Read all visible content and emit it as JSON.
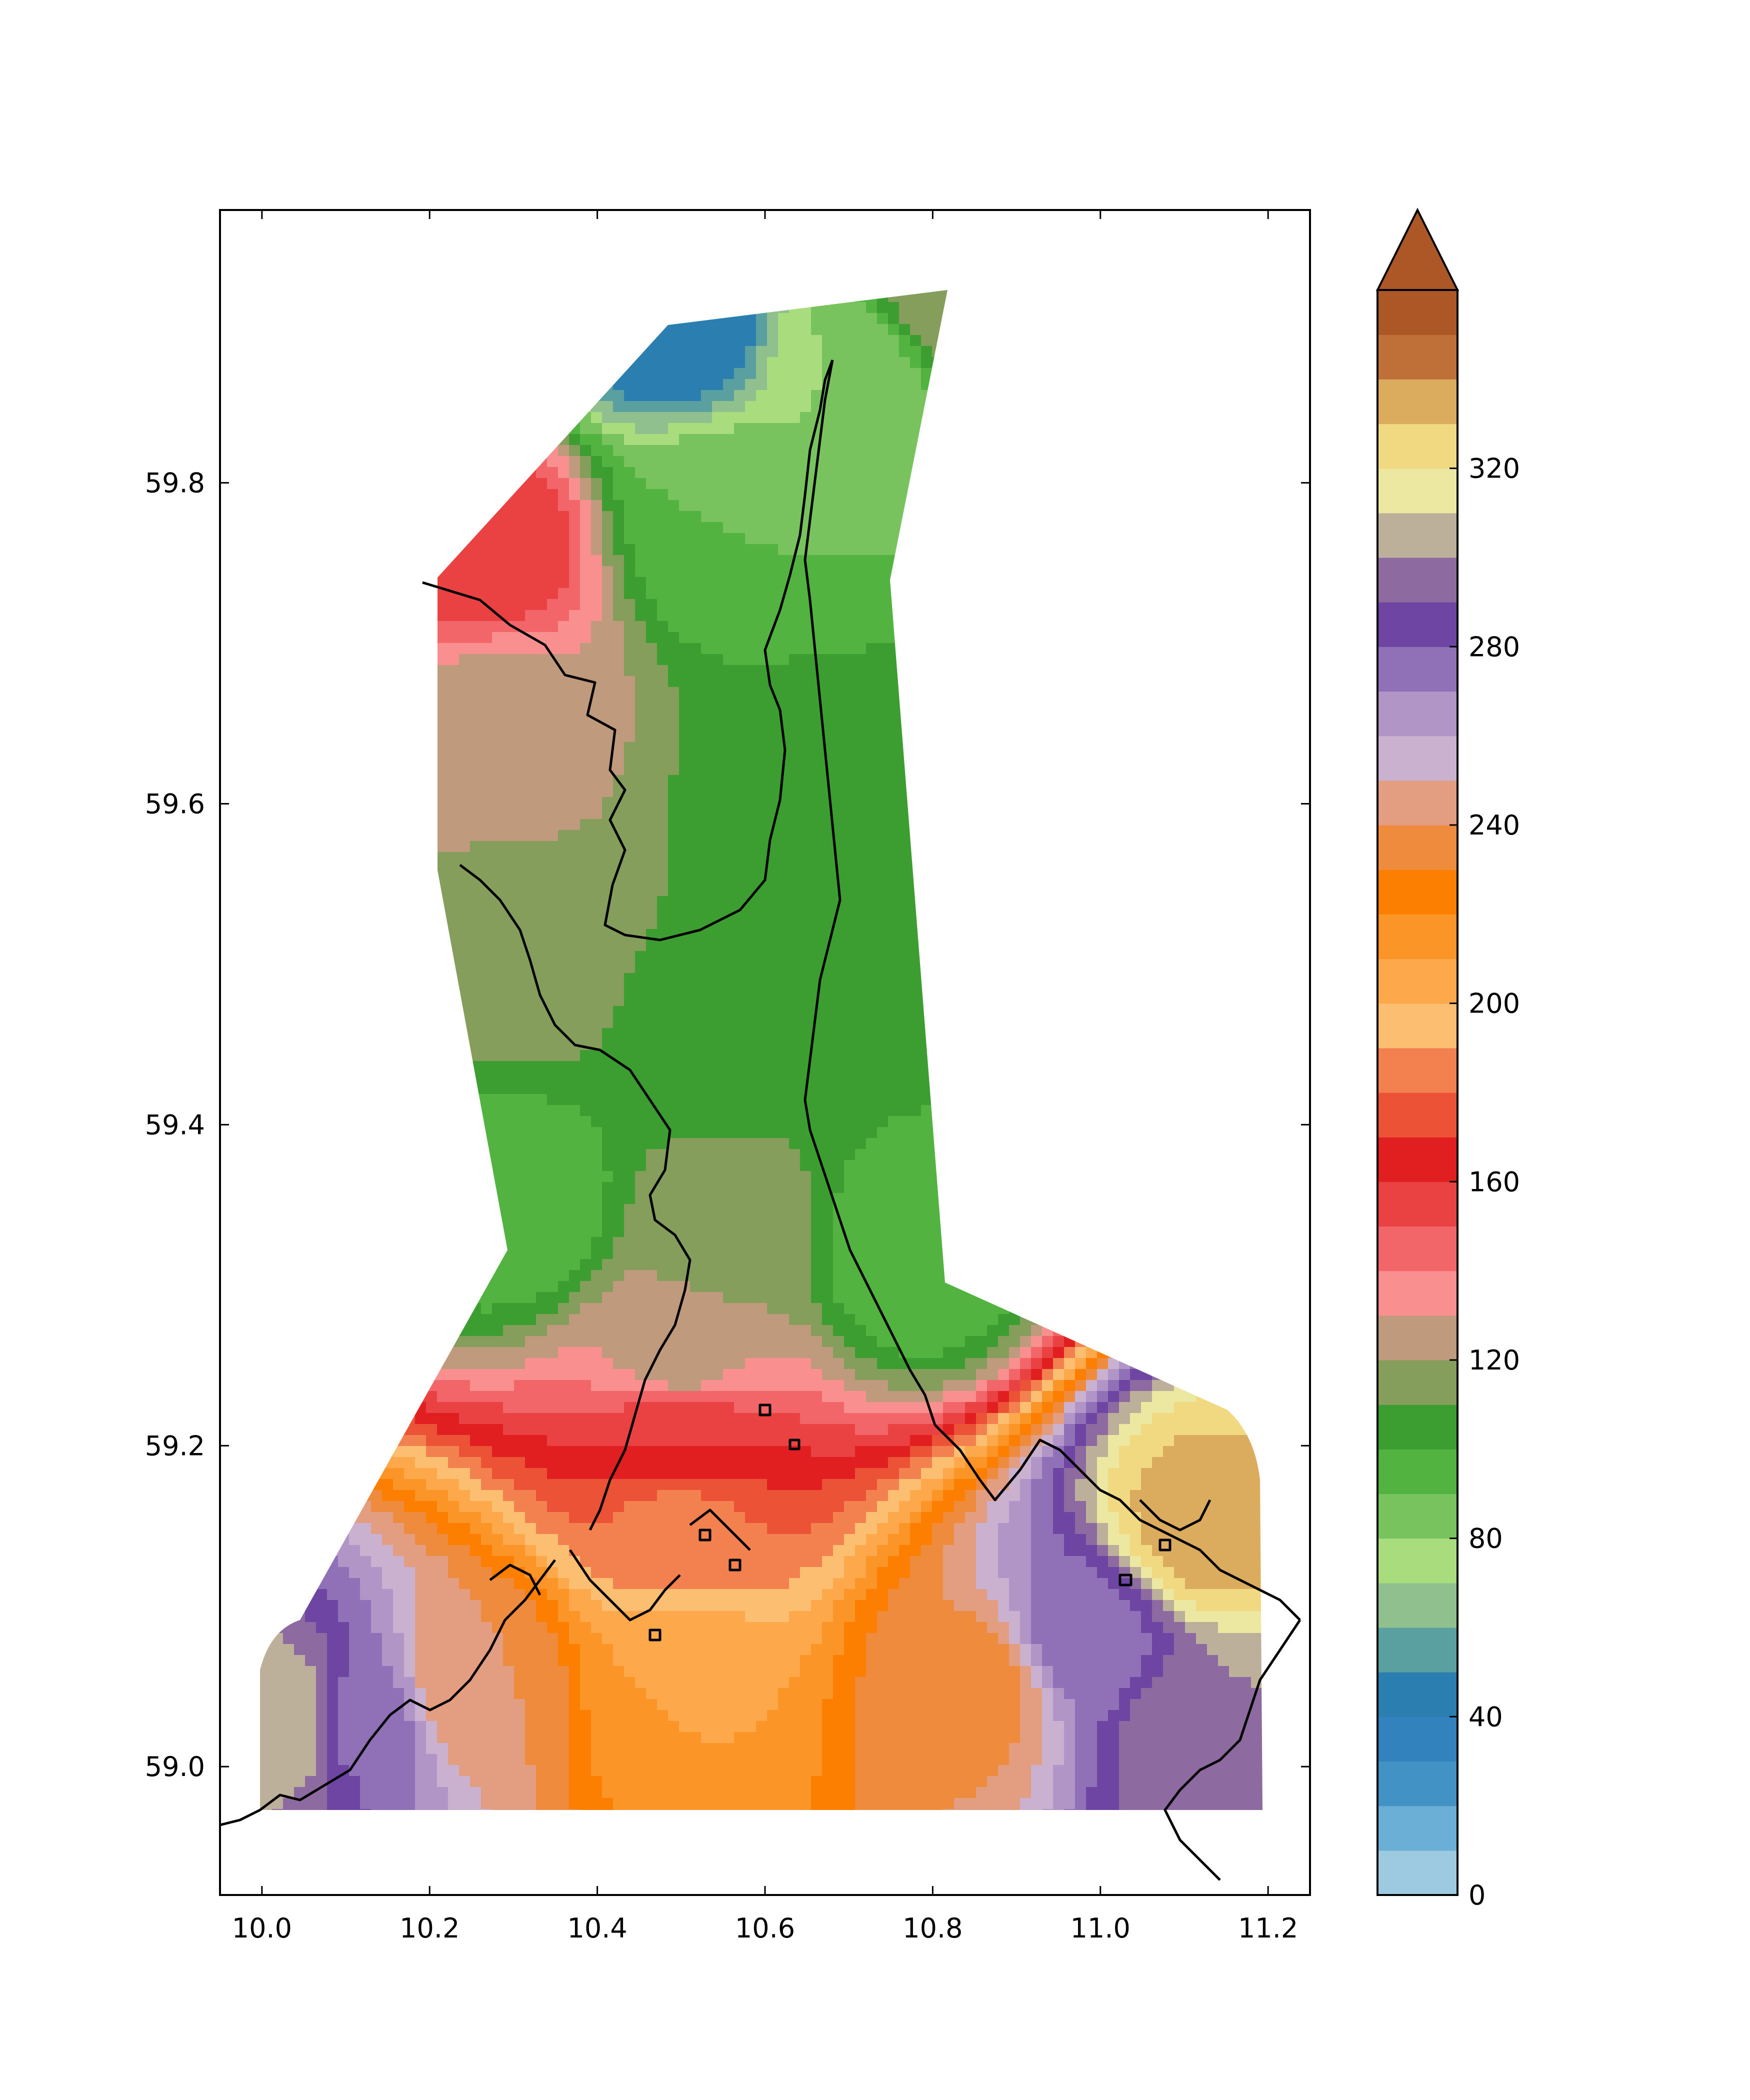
{
  "chart_data": {
    "type": "heatmap",
    "title": "",
    "xlabel": "",
    "ylabel": "",
    "xlim": [
      9.95,
      11.25
    ],
    "ylim": [
      58.92,
      59.97
    ],
    "x_ticks": [
      "10.0",
      "10.2",
      "10.4",
      "10.6",
      "10.8",
      "11.0",
      "11.2"
    ],
    "y_ticks": [
      "59.0",
      "59.2",
      "59.4",
      "59.6",
      "59.8"
    ],
    "grid": false,
    "colorbar": {
      "ticks": [
        "0",
        "40",
        "80",
        "120",
        "160",
        "200",
        "240",
        "280",
        "320"
      ],
      "range": [
        0,
        340
      ],
      "step": 10,
      "extend": "max",
      "colors": [
        "#9ecae1",
        "#6baed6",
        "#4292c6",
        "#3182bd",
        "#2b7fb0",
        "#5aa0a0",
        "#8fc08e",
        "#a8dc7c",
        "#78c35e",
        "#52b341",
        "#3c9e31",
        "#859e5b",
        "#c09a7c",
        "#fa8f8f",
        "#f2666a",
        "#ea4143",
        "#e11f20",
        "#ec5336",
        "#f2814f",
        "#fcbf72",
        "#fda84a",
        "#fb9528",
        "#fc7f02",
        "#ee8b3c",
        "#e39d81",
        "#cab1d0",
        "#b095c6",
        "#9070b6",
        "#6e45a2",
        "#8d6ba0",
        "#bdb09a",
        "#ede8a1",
        "#f0d980",
        "#dbab5e",
        "#bf7038",
        "#ad5727"
      ]
    },
    "regions": [
      {
        "lon": 10.03,
        "lat": 59.03,
        "value": 310
      },
      {
        "lon": 10.12,
        "lat": 59.03,
        "value": 275
      },
      {
        "lon": 10.25,
        "lat": 59.05,
        "value": 240
      },
      {
        "lon": 10.5,
        "lat": 59.05,
        "value": 210
      },
      {
        "lon": 10.85,
        "lat": 59.05,
        "value": 235
      },
      {
        "lon": 10.98,
        "lat": 59.08,
        "value": 275
      },
      {
        "lon": 11.12,
        "lat": 59.15,
        "value": 335
      },
      {
        "lon": 11.12,
        "lat": 59.02,
        "value": 300
      },
      {
        "lon": 10.5,
        "lat": 59.15,
        "value": 185
      },
      {
        "lon": 10.5,
        "lat": 59.2,
        "value": 160
      },
      {
        "lon": 10.5,
        "lat": 59.26,
        "value": 125
      },
      {
        "lon": 10.55,
        "lat": 59.33,
        "value": 115
      },
      {
        "lon": 10.3,
        "lat": 59.35,
        "value": 90
      },
      {
        "lon": 10.78,
        "lat": 59.32,
        "value": 90
      },
      {
        "lon": 10.55,
        "lat": 59.45,
        "value": 105
      },
      {
        "lon": 10.65,
        "lat": 59.6,
        "value": 105
      },
      {
        "lon": 10.3,
        "lat": 59.5,
        "value": 115
      },
      {
        "lon": 10.28,
        "lat": 59.65,
        "value": 125
      },
      {
        "lon": 10.26,
        "lat": 59.76,
        "value": 160
      },
      {
        "lon": 10.55,
        "lat": 59.78,
        "value": 90
      },
      {
        "lon": 10.7,
        "lat": 59.87,
        "value": 80
      },
      {
        "lon": 10.5,
        "lat": 59.9,
        "value": 40
      },
      {
        "lon": 10.82,
        "lat": 59.92,
        "value": 120
      }
    ]
  }
}
